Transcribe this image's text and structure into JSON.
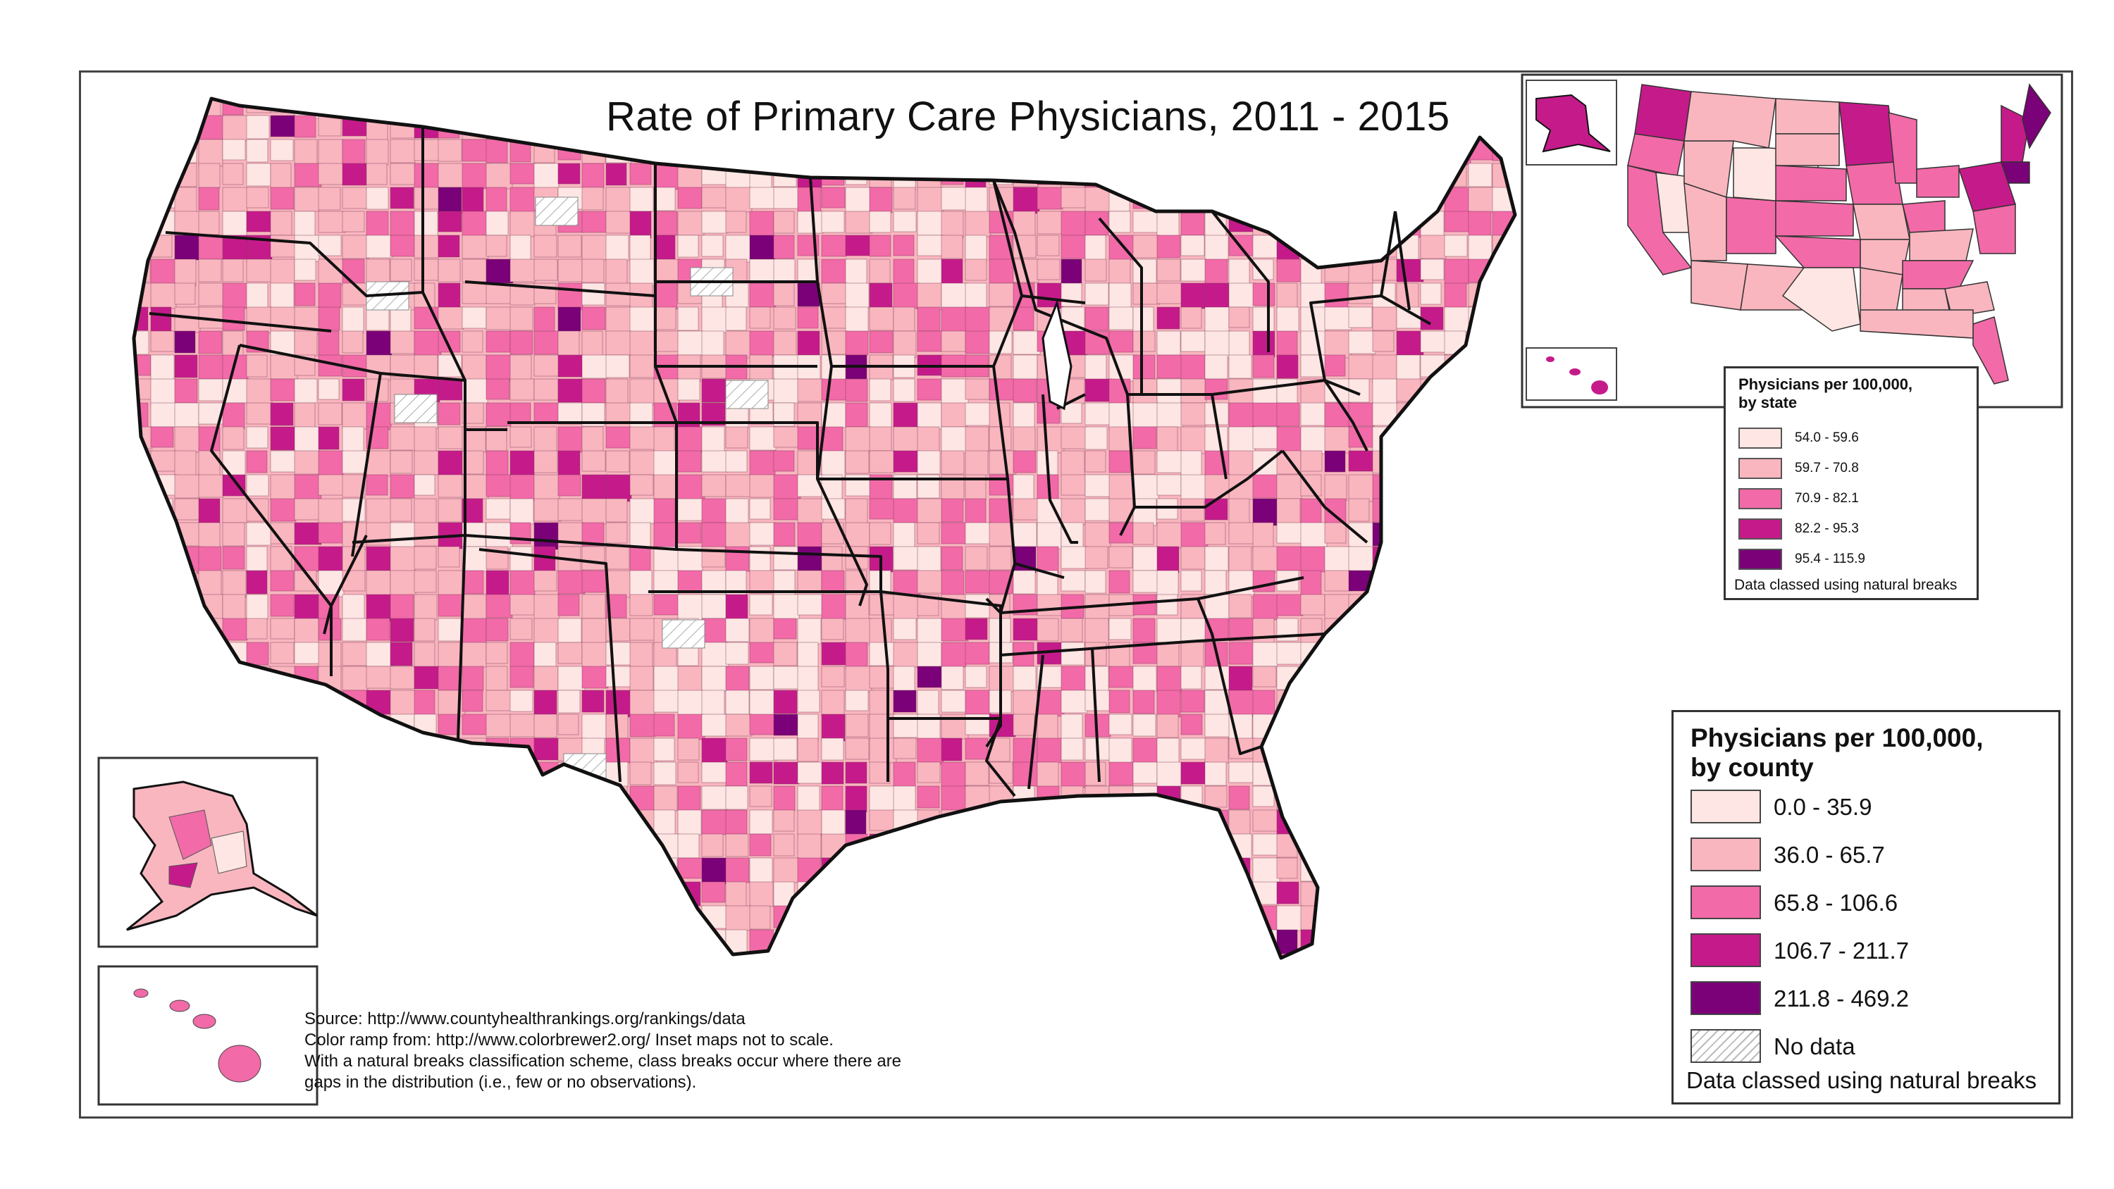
{
  "title": "Rate of Primary Care Physicians, 2011 - 2015",
  "colors": {
    "class1": "#fde6e3",
    "class2": "#f9b6bf",
    "class3": "#f26aa8",
    "class4": "#c51b8a",
    "class5": "#7a0177",
    "outline": "#111111",
    "county_line": "#7a3a55"
  },
  "state_legend": {
    "title_line1": "Physicians per 100,000,",
    "title_line2": "by state",
    "classes": [
      {
        "label": "54.0 - 59.6",
        "color": "#fde6e3"
      },
      {
        "label": "59.7 - 70.8",
        "color": "#f9b6bf"
      },
      {
        "label": "70.9 - 82.1",
        "color": "#f26aa8"
      },
      {
        "label": "82.2 - 95.3",
        "color": "#c51b8a"
      },
      {
        "label": "95.4 - 115.9",
        "color": "#7a0177"
      }
    ],
    "footnote": "Data classed using natural breaks"
  },
  "county_legend": {
    "title_line1": "Physicians per 100,000,",
    "title_line2": "by county",
    "classes": [
      {
        "label": "0.0 - 35.9",
        "color": "#fde6e3"
      },
      {
        "label": "36.0 - 65.7",
        "color": "#f9b6bf"
      },
      {
        "label": "65.8 - 106.6",
        "color": "#f26aa8"
      },
      {
        "label": "106.7 - 211.7",
        "color": "#c51b8a"
      },
      {
        "label": "211.8 - 469.2",
        "color": "#7a0177"
      }
    ],
    "no_data_label": "No data",
    "footnote": "Data classed using natural breaks"
  },
  "source_notes": [
    "Source: http://www.countyhealthrankings.org/rankings/data",
    "Color ramp from: http://www.colorbrewer2.org/  Inset maps not to scale.",
    "With a natural breaks classification scheme, class breaks occur where there are",
    "gaps in the distribution (i.e., few or no observations)."
  ]
}
